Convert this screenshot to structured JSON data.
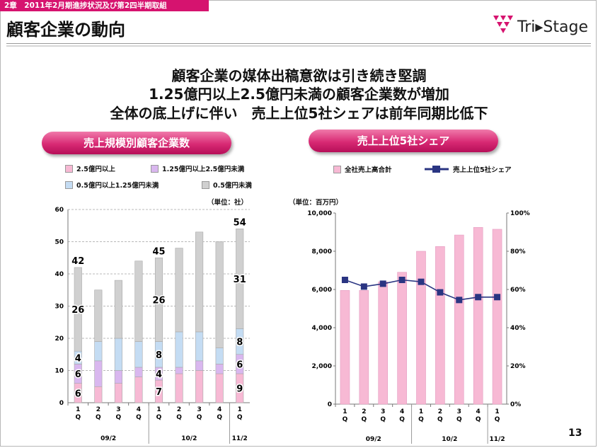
{
  "header": {
    "chapter": "2章　2011年2月期進捗状況及び第2四半期取組",
    "title": "顧客企業の動向",
    "logo_text": "Tri▸Stage"
  },
  "headlines": [
    "顧客企業の媒体出稿意欲は引き続き堅調",
    "1.25億円以上2.5億円未満の顧客企業数が増加",
    "全体の底上げに伴い　売上上位5社シェアは前年同期比低下"
  ],
  "left_panel": {
    "pill_label": "売上規模別顧客企業数",
    "unit": "（単位：社）"
  },
  "right_panel": {
    "pill_label": "売上上位5社シェア",
    "unit": "（単位：百万円）"
  },
  "page_number": "13",
  "colors": {
    "brand": "#d6136f",
    "pink_fill": "#f7b9d4",
    "violet_fill": "#d9b7ef",
    "blue_fill": "#c4dcf3",
    "gray_fill": "#d0d0d0",
    "line_navy": "#2a3582"
  },
  "chart_data": [
    {
      "type": "bar",
      "stacked": true,
      "categories": [
        "1Q",
        "2Q",
        "3Q",
        "4Q",
        "1Q",
        "2Q",
        "3Q",
        "4Q",
        "1Q"
      ],
      "groups": [
        {
          "label": "09/2",
          "span": 4
        },
        {
          "label": "10/2",
          "span": 4
        },
        {
          "label": "11/2",
          "span": 1
        }
      ],
      "series": [
        {
          "name": "2.5億円以上",
          "color": "#f7b9d4",
          "values": [
            6,
            5,
            6,
            8,
            7,
            9,
            10,
            9,
            9
          ]
        },
        {
          "name": "1.25億円以上2.5億円未満",
          "color": "#d9b7ef",
          "values": [
            6,
            8,
            4,
            3,
            4,
            2,
            3,
            3,
            6
          ]
        },
        {
          "name": "0.5億円以上1.25億円未満",
          "color": "#c4dcf3",
          "values": [
            4,
            6,
            10,
            8,
            8,
            11,
            9,
            5,
            8
          ]
        },
        {
          "name": "0.5億円未満",
          "color": "#d0d0d0",
          "values": [
            26,
            16,
            18,
            25,
            26,
            26,
            31,
            33,
            31
          ]
        }
      ],
      "totals": [
        42,
        35,
        38,
        44,
        45,
        48,
        53,
        50,
        54
      ],
      "total_labels": {
        "0": "42",
        "4": "45",
        "8": "54"
      },
      "segment_labels": [
        {
          "bar": 0,
          "series": 0,
          "text": "6"
        },
        {
          "bar": 0,
          "series": 1,
          "text": "6"
        },
        {
          "bar": 0,
          "series": 2,
          "text": "4"
        },
        {
          "bar": 0,
          "series": 3,
          "text": "26"
        },
        {
          "bar": 4,
          "series": 0,
          "text": "7"
        },
        {
          "bar": 4,
          "series": 1,
          "text": "4"
        },
        {
          "bar": 4,
          "series": 2,
          "text": "8"
        },
        {
          "bar": 4,
          "series": 3,
          "text": "26"
        },
        {
          "bar": 8,
          "series": 0,
          "text": "9"
        },
        {
          "bar": 8,
          "series": 1,
          "text": "6"
        },
        {
          "bar": 8,
          "series": 2,
          "text": "8"
        },
        {
          "bar": 8,
          "series": 3,
          "text": "31"
        }
      ],
      "ylim": [
        0,
        60
      ],
      "yticks": [
        0,
        10,
        20,
        30,
        40,
        50,
        60
      ],
      "grid": true,
      "legend": "top"
    },
    {
      "type": "bar+line",
      "categories": [
        "1Q",
        "2Q",
        "3Q",
        "4Q",
        "1Q",
        "2Q",
        "3Q",
        "4Q",
        "1Q"
      ],
      "groups": [
        {
          "label": "09/2",
          "span": 4
        },
        {
          "label": "10/2",
          "span": 4
        },
        {
          "label": "11/2",
          "span": 1
        }
      ],
      "bar_series": {
        "name": "全社売上高合計",
        "color": "#f7b9d4",
        "values": [
          5950,
          5950,
          6400,
          6900,
          8000,
          8250,
          8850,
          9250,
          9150
        ]
      },
      "line_series": {
        "name": "売上上位5社シェア",
        "color": "#2a3582",
        "values": [
          65,
          61.5,
          63,
          65,
          64,
          58.5,
          54.5,
          56,
          56
        ]
      },
      "y_left": {
        "lim": [
          0,
          10000
        ],
        "ticks": [
          "0",
          "2,000",
          "4,000",
          "6,000",
          "8,000",
          "10,000"
        ]
      },
      "y_right": {
        "lim": [
          0,
          100
        ],
        "ticks": [
          "0%",
          "20%",
          "40%",
          "60%",
          "80%",
          "100%"
        ]
      },
      "grid": false,
      "legend": "top"
    }
  ]
}
